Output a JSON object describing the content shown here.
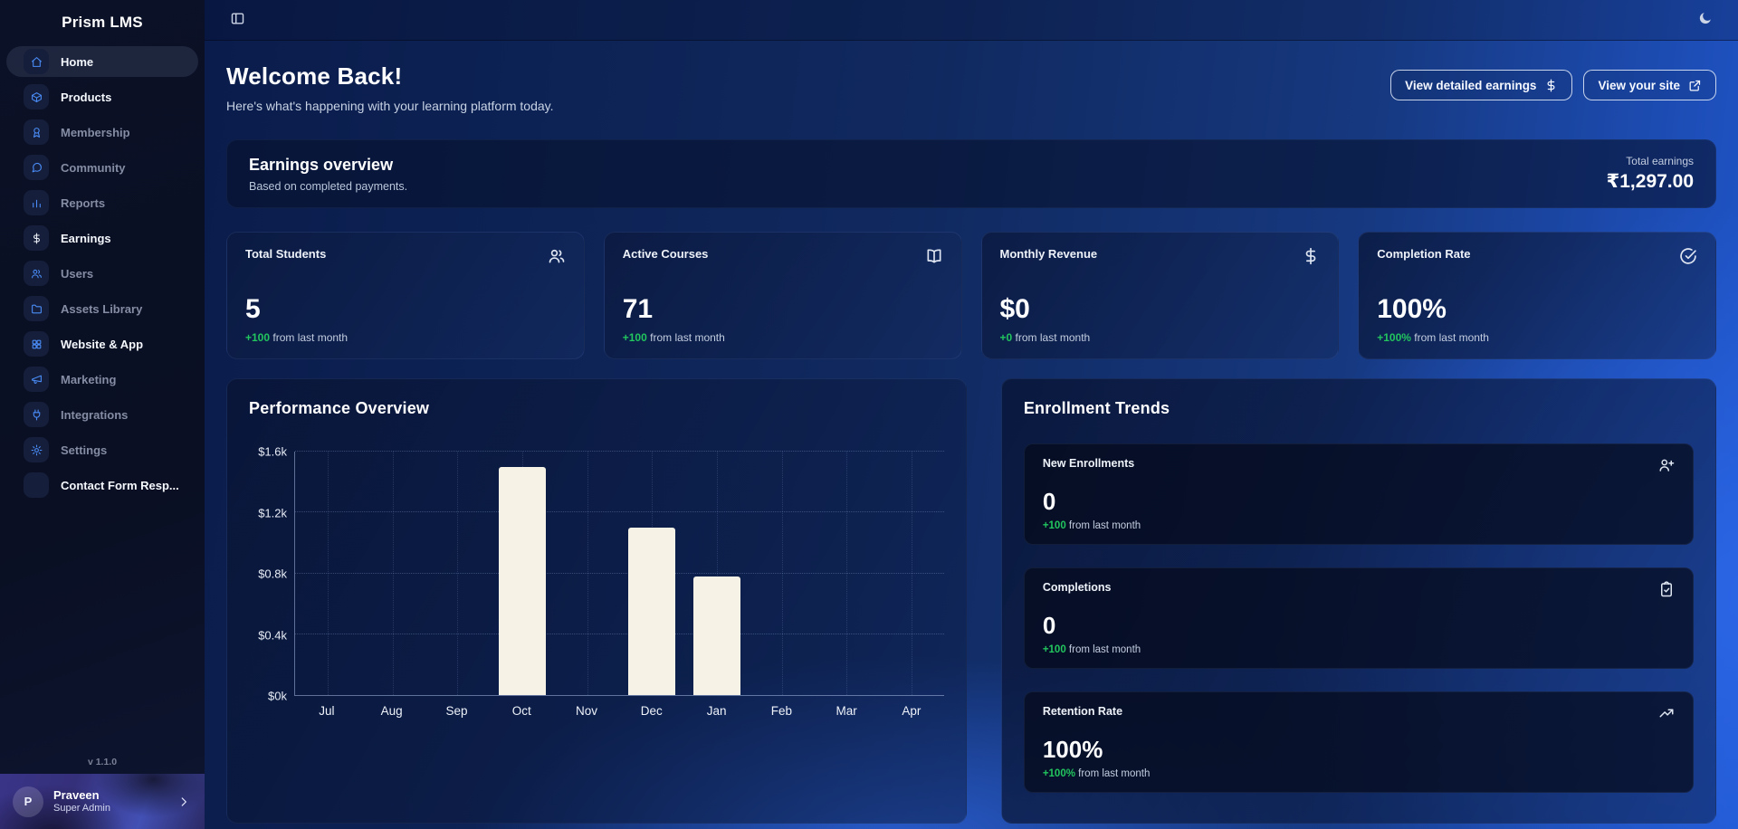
{
  "app": {
    "title": "Prism LMS",
    "version": "v 1.1.0"
  },
  "topbar": {
    "sidebar_toggle_icon": "panel-toggle-icon",
    "theme_toggle_icon": "moon-icon"
  },
  "sidebar": {
    "items": [
      {
        "label": "Home",
        "icon": "home-icon",
        "active": true,
        "state": "bright"
      },
      {
        "label": "Products",
        "icon": "products-icon",
        "active": false,
        "state": "bright"
      },
      {
        "label": "Membership",
        "icon": "membership-icon",
        "active": false,
        "state": "dim"
      },
      {
        "label": "Community",
        "icon": "community-icon",
        "active": false,
        "state": "dim"
      },
      {
        "label": "Reports",
        "icon": "reports-icon",
        "active": false,
        "state": "dim"
      },
      {
        "label": "Earnings",
        "icon": "dollar-icon",
        "active": false,
        "state": "bright",
        "icon_style": "light"
      },
      {
        "label": "Users",
        "icon": "users-icon",
        "active": false,
        "state": "dim"
      },
      {
        "label": "Assets Library",
        "icon": "folder-icon",
        "active": false,
        "state": "dim"
      },
      {
        "label": "Website & App",
        "icon": "grid-icon",
        "active": false,
        "state": "bright"
      },
      {
        "label": "Marketing",
        "icon": "megaphone-icon",
        "active": false,
        "state": "dim"
      },
      {
        "label": "Integrations",
        "icon": "plug-icon",
        "active": false,
        "state": "dim"
      },
      {
        "label": "Settings",
        "icon": "gear-icon",
        "active": false,
        "state": "dim"
      },
      {
        "label": "Contact Form Resp...",
        "icon": "blank-icon",
        "active": false,
        "state": "bright"
      }
    ],
    "user": {
      "initial": "P",
      "name": "Praveen",
      "role": "Super Admin",
      "chevron_icon": "chevron-right-icon"
    }
  },
  "header": {
    "title": "Welcome Back!",
    "subtitle": "Here's what's happening with your learning platform today.",
    "buttons": [
      {
        "label": "View detailed earnings",
        "icon": "dollar-icon"
      },
      {
        "label": "View your site",
        "icon": "external-link-icon"
      }
    ]
  },
  "earnings_banner": {
    "title": "Earnings overview",
    "subtitle": "Based on completed payments.",
    "total_label": "Total earnings",
    "total_value": "₹1,297.00"
  },
  "stat_cards": [
    {
      "title": "Total Students",
      "icon": "users-icon",
      "value": "5",
      "change": "+100",
      "change_suffix": " from last month"
    },
    {
      "title": "Active Courses",
      "icon": "book-open-icon",
      "value": "71",
      "change": "+100",
      "change_suffix": " from last month"
    },
    {
      "title": "Monthly Revenue",
      "icon": "dollar-icon",
      "value": "$0",
      "change": "+0",
      "change_suffix": " from last month"
    },
    {
      "title": "Completion Rate",
      "icon": "circle-check-icon",
      "value": "100%",
      "change": "+100%",
      "change_suffix": " from last month"
    }
  ],
  "performance": {
    "title": "Performance Overview"
  },
  "chart_data": {
    "type": "bar",
    "title": "Performance Overview",
    "categories": [
      "Jul",
      "Aug",
      "Sep",
      "Oct",
      "Nov",
      "Dec",
      "Jan",
      "Feb",
      "Mar",
      "Apr"
    ],
    "values": [
      0,
      0,
      0,
      1500,
      0,
      1100,
      780,
      0,
      0,
      0
    ],
    "xlabel": "",
    "ylabel": "",
    "ylim": [
      0,
      1600
    ],
    "yticks": [
      0,
      400,
      800,
      1200,
      1600
    ],
    "ytick_labels": [
      "$0k",
      "$0.4k",
      "$0.8k",
      "$1.2k",
      "$1.6k"
    ],
    "grid": true,
    "legend": false,
    "bar_color": "#f6f3e6"
  },
  "enrollment": {
    "title": "Enrollment Trends",
    "cards": [
      {
        "title": "New Enrollments",
        "icon": "user-plus-icon",
        "value": "0",
        "change": "+100",
        "change_suffix": " from last month"
      },
      {
        "title": "Completions",
        "icon": "clipboard-check-icon",
        "value": "0",
        "change": "+100",
        "change_suffix": " from last month"
      },
      {
        "title": "Retention Rate",
        "icon": "trending-up-icon",
        "value": "100%",
        "change": "+100%",
        "change_suffix": " from last month"
      }
    ]
  },
  "colors": {
    "accent_green": "#22c55e",
    "bar_fill": "#f6f3e6"
  }
}
